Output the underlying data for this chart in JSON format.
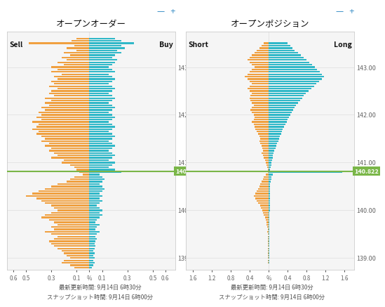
{
  "title_left": "オープンオーダー",
  "title_right": "オープンポジション",
  "label_sell": "Sell",
  "label_buy": "Buy",
  "label_short": "Short",
  "label_long": "Long",
  "current_price": 140.822,
  "price_label": "140.822",
  "xtick_labels_left": [
    "0.6",
    "0.5",
    "0.3",
    "0.1",
    "%",
    "0.1",
    "0.3",
    "0.5",
    "0.6"
  ],
  "xtick_labels_right": [
    "1.6",
    "1.2",
    "0.8",
    "0.4",
    "%",
    "0.4",
    "0.8",
    "1.2",
    "1.6"
  ],
  "y_min": 138.75,
  "y_max": 143.75,
  "yticks": [
    139.0,
    140.0,
    141.0,
    142.0,
    143.0
  ],
  "color_orange": "#f0a040",
  "color_teal": "#30b8c8",
  "color_green_line": "#7ab648",
  "color_price_box": "#7ab648",
  "color_price_text": "#ffffff",
  "color_bg": "#ffffff",
  "color_panel": "#f5f5f5",
  "color_grid": "#dddddd",
  "color_border": "#cccccc",
  "footer_line1": "最新更新時間: 9月14日 6時30分",
  "footer_line2": "スナップショット時間: 9月14日 6時00分",
  "order_prices": [
    143.6,
    143.55,
    143.5,
    143.45,
    143.4,
    143.35,
    143.3,
    143.25,
    143.2,
    143.15,
    143.1,
    143.05,
    143.0,
    142.95,
    142.9,
    142.85,
    142.8,
    142.75,
    142.7,
    142.65,
    142.6,
    142.55,
    142.5,
    142.45,
    142.4,
    142.35,
    142.3,
    142.25,
    142.2,
    142.15,
    142.1,
    142.05,
    142.0,
    141.95,
    141.9,
    141.85,
    141.8,
    141.75,
    141.7,
    141.65,
    141.6,
    141.55,
    141.5,
    141.45,
    141.4,
    141.35,
    141.3,
    141.25,
    141.2,
    141.15,
    141.1,
    141.05,
    141.0,
    140.95,
    140.9,
    140.85,
    140.8,
    140.75,
    140.7,
    140.65,
    140.6,
    140.55,
    140.5,
    140.45,
    140.4,
    140.35,
    140.3,
    140.25,
    140.2,
    140.15,
    140.1,
    140.05,
    140.0,
    139.95,
    139.9,
    139.85,
    139.8,
    139.75,
    139.7,
    139.65,
    139.6,
    139.55,
    139.5,
    139.45,
    139.4,
    139.35,
    139.3,
    139.25,
    139.2,
    139.15,
    139.1,
    139.05,
    139.0,
    138.95,
    138.9,
    138.85,
    138.8
  ],
  "order_sell": [
    0.1,
    0.14,
    0.48,
    0.12,
    0.18,
    0.1,
    0.2,
    0.15,
    0.22,
    0.18,
    0.25,
    0.2,
    0.3,
    0.25,
    0.3,
    0.22,
    0.28,
    0.25,
    0.3,
    0.28,
    0.32,
    0.25,
    0.3,
    0.32,
    0.28,
    0.35,
    0.3,
    0.35,
    0.32,
    0.38,
    0.35,
    0.4,
    0.38,
    0.42,
    0.38,
    0.45,
    0.4,
    0.42,
    0.45,
    0.4,
    0.42,
    0.38,
    0.35,
    0.38,
    0.32,
    0.35,
    0.3,
    0.32,
    0.28,
    0.25,
    0.3,
    0.2,
    0.22,
    0.15,
    0.12,
    0.1,
    0.08,
    0.05,
    0.12,
    0.15,
    0.18,
    0.25,
    0.3,
    0.35,
    0.4,
    0.45,
    0.5,
    0.42,
    0.38,
    0.35,
    0.3,
    0.28,
    0.25,
    0.3,
    0.35,
    0.38,
    0.32,
    0.28,
    0.25,
    0.3,
    0.28,
    0.35,
    0.3,
    0.25,
    0.28,
    0.32,
    0.3,
    0.28,
    0.25,
    0.22,
    0.2,
    0.18,
    0.15,
    0.2,
    0.22,
    0.15,
    0.12
  ],
  "order_buy": [
    0.2,
    0.25,
    0.35,
    0.25,
    0.28,
    0.22,
    0.25,
    0.2,
    0.18,
    0.22,
    0.2,
    0.18,
    0.15,
    0.18,
    0.2,
    0.15,
    0.18,
    0.2,
    0.18,
    0.15,
    0.18,
    0.2,
    0.18,
    0.15,
    0.18,
    0.2,
    0.18,
    0.15,
    0.18,
    0.2,
    0.18,
    0.15,
    0.18,
    0.2,
    0.18,
    0.15,
    0.18,
    0.2,
    0.18,
    0.15,
    0.18,
    0.2,
    0.18,
    0.15,
    0.18,
    0.2,
    0.18,
    0.15,
    0.18,
    0.2,
    0.18,
    0.15,
    0.2,
    0.18,
    0.15,
    0.2,
    0.25,
    0.08,
    0.1,
    0.12,
    0.1,
    0.08,
    0.1,
    0.12,
    0.1,
    0.08,
    0.1,
    0.08,
    0.1,
    0.08,
    0.06,
    0.08,
    0.1,
    0.08,
    0.1,
    0.08,
    0.06,
    0.05,
    0.08,
    0.06,
    0.05,
    0.08,
    0.06,
    0.05,
    0.06,
    0.05,
    0.04,
    0.05,
    0.04,
    0.03,
    0.04,
    0.03,
    0.04,
    0.03,
    0.04,
    0.03,
    0.02
  ],
  "pos_prices": [
    143.5,
    143.45,
    143.4,
    143.35,
    143.3,
    143.25,
    143.2,
    143.15,
    143.1,
    143.05,
    143.0,
    142.95,
    142.9,
    142.85,
    142.8,
    142.75,
    142.7,
    142.65,
    142.6,
    142.55,
    142.5,
    142.45,
    142.4,
    142.35,
    142.3,
    142.25,
    142.2,
    142.15,
    142.1,
    142.05,
    142.0,
    141.95,
    141.9,
    141.85,
    141.8,
    141.75,
    141.7,
    141.65,
    141.6,
    141.55,
    141.5,
    141.45,
    141.4,
    141.35,
    141.3,
    141.25,
    141.2,
    141.15,
    141.1,
    141.05,
    141.0,
    140.95,
    140.9,
    140.85,
    140.8,
    140.75,
    140.7,
    140.65,
    140.6,
    140.55,
    140.5,
    140.45,
    140.4,
    140.35,
    140.3,
    140.25,
    140.2,
    140.15,
    140.1,
    140.05,
    140.0,
    139.95,
    139.9,
    139.85,
    139.8,
    139.75,
    139.7,
    139.65,
    139.6,
    139.55,
    139.5,
    139.45,
    139.4,
    139.35,
    139.3,
    139.25,
    139.2,
    139.15,
    139.1,
    139.05,
    139.0,
    138.95,
    138.9
  ],
  "pos_short": [
    0.1,
    0.15,
    0.2,
    0.25,
    0.3,
    0.35,
    0.4,
    0.45,
    0.4,
    0.35,
    0.3,
    0.35,
    0.4,
    0.45,
    0.5,
    0.45,
    0.4,
    0.35,
    0.4,
    0.45,
    0.4,
    0.35,
    0.38,
    0.4,
    0.38,
    0.35,
    0.32,
    0.35,
    0.38,
    0.35,
    0.32,
    0.3,
    0.32,
    0.35,
    0.32,
    0.3,
    0.28,
    0.25,
    0.22,
    0.2,
    0.18,
    0.2,
    0.18,
    0.15,
    0.13,
    0.12,
    0.15,
    0.12,
    0.1,
    0.08,
    0.06,
    0.04,
    0.03,
    0.02,
    0.02,
    0.06,
    0.1,
    0.12,
    0.15,
    0.18,
    0.2,
    0.22,
    0.25,
    0.28,
    0.32,
    0.28,
    0.25,
    0.22,
    0.18,
    0.16,
    0.14,
    0.12,
    0.1,
    0.08,
    0.06,
    0.05,
    0.04,
    0.03,
    0.02,
    0.03,
    0.02,
    0.02,
    0.02,
    0.01,
    0.01,
    0.01,
    0.01,
    0.01,
    0.01,
    0.01,
    0.01,
    0.01,
    0.01
  ],
  "pos_long": [
    0.4,
    0.45,
    0.5,
    0.55,
    0.62,
    0.68,
    0.74,
    0.8,
    0.86,
    0.92,
    0.98,
    1.02,
    1.08,
    1.12,
    1.16,
    1.12,
    1.06,
    1.0,
    0.96,
    0.9,
    0.84,
    0.78,
    0.74,
    0.7,
    0.66,
    0.62,
    0.58,
    0.55,
    0.52,
    0.48,
    0.45,
    0.42,
    0.4,
    0.38,
    0.35,
    0.32,
    0.3,
    0.28,
    0.26,
    0.24,
    0.22,
    0.2,
    0.18,
    0.16,
    0.14,
    0.12,
    0.1,
    0.09,
    0.08,
    0.07,
    0.06,
    0.05,
    0.04,
    0.03,
    1.55,
    0.08,
    0.06,
    0.05,
    0.04,
    0.03,
    0.02,
    0.02,
    0.02,
    0.02,
    0.02,
    0.02,
    0.02,
    0.02,
    0.02,
    0.02,
    0.02,
    0.01,
    0.01,
    0.01,
    0.01,
    0.01,
    0.01,
    0.01,
    0.01,
    0.01,
    0.01,
    0.01,
    0.01,
    0.01,
    0.01,
    0.01,
    0.01,
    0.01,
    0.01,
    0.01,
    0.01,
    0.01,
    0.01
  ]
}
